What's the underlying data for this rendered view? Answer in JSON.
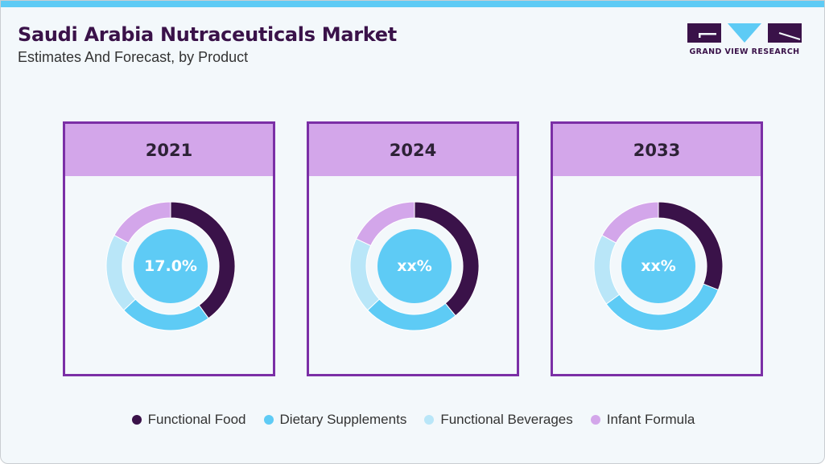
{
  "header": {
    "title": "Saudi Arabia Nutraceuticals Market",
    "subtitle": "Estimates And Forecast, by Product"
  },
  "logo": {
    "text": "GRAND VIEW RESEARCH",
    "colors": {
      "dark": "#3a1249",
      "accent": "#5ecbf5"
    }
  },
  "colors": {
    "Functional Food": "#3a1249",
    "Dietary Supplements": "#5ecbf5",
    "Functional Beverages": "#b9e6f8",
    "Infant Formula": "#d3a6ea",
    "card_border": "#7b2fa6",
    "card_header": "#d3a6ea",
    "top_bar": "#5ecbf5"
  },
  "cards": [
    {
      "year": "2021",
      "center_label": "17.0%"
    },
    {
      "year": "2024",
      "center_label": "xx%"
    },
    {
      "year": "2033",
      "center_label": "xx%"
    }
  ],
  "legend": [
    {
      "label": "Functional Food",
      "color": "#3a1249"
    },
    {
      "label": "Dietary Supplements",
      "color": "#5ecbf5"
    },
    {
      "label": "Functional Beverages",
      "color": "#b9e6f8"
    },
    {
      "label": "Infant Formula",
      "color": "#d3a6ea"
    }
  ],
  "chart_data": [
    {
      "type": "pie",
      "title": "2021",
      "categories": [
        "Functional Food",
        "Dietary Supplements",
        "Functional Beverages",
        "Infant Formula"
      ],
      "values": [
        40,
        23,
        20,
        17
      ],
      "center_annotation": "17.0%"
    },
    {
      "type": "pie",
      "title": "2024",
      "categories": [
        "Functional Food",
        "Dietary Supplements",
        "Functional Beverages",
        "Infant Formula"
      ],
      "values": [
        39,
        24,
        19,
        18
      ],
      "center_annotation": "xx%"
    },
    {
      "type": "pie",
      "title": "2033",
      "categories": [
        "Functional Food",
        "Dietary Supplements",
        "Functional Beverages",
        "Infant Formula"
      ],
      "values": [
        31,
        34,
        18,
        17
      ],
      "center_annotation": "xx%"
    }
  ]
}
